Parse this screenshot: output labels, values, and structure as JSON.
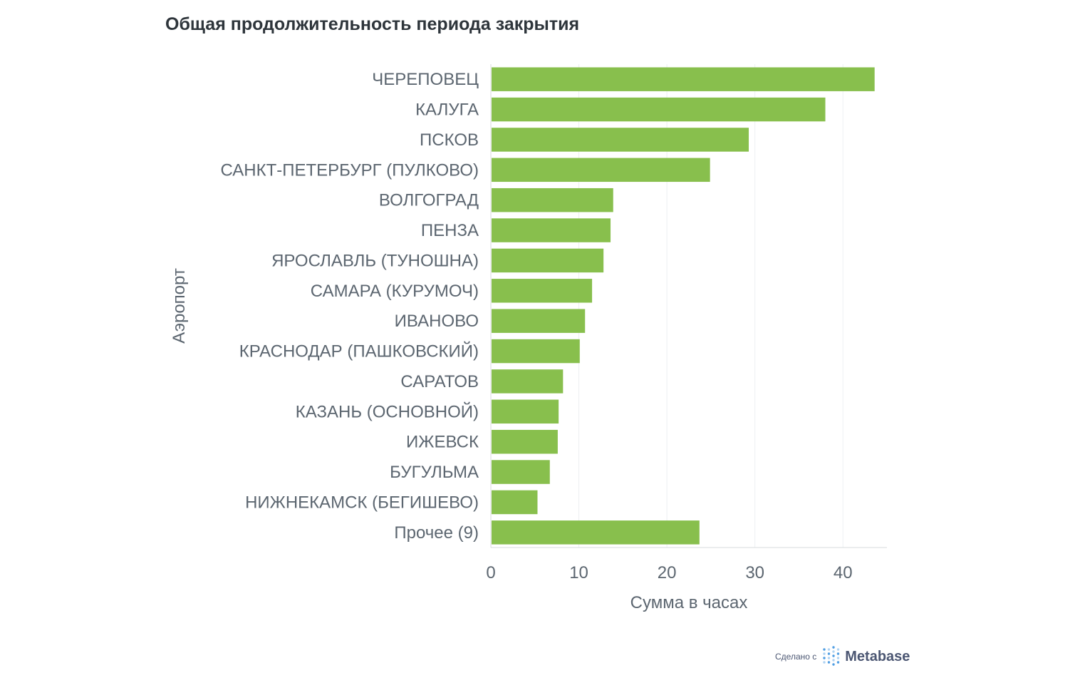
{
  "chart_data": {
    "type": "bar",
    "orientation": "horizontal",
    "title": "Общая продолжительность периода закрытия",
    "xlabel": "Сумма в часах",
    "ylabel": "Аэропорт",
    "categories": [
      "ЧЕРЕПОВЕЦ",
      "КАЛУГА",
      "ПСКОВ",
      "САНКТ-ПЕТЕРБУРГ (ПУЛКОВО)",
      "ВОЛГОГРАД",
      "ПЕНЗА",
      "ЯРОСЛАВЛЬ (ТУНОШНА)",
      "САМАРА (КУРУМОЧ)",
      "ИВАНОВО",
      "КРАСНОДАР (ПАШКОВСКИЙ)",
      "САРАТОВ",
      "КАЗАНЬ (ОСНОВНОЙ)",
      "ИЖЕВСК",
      "БУГУЛЬМА",
      "НИЖНЕКАМСК (БЕГИШЕВО)",
      "Прочее (9)"
    ],
    "values": [
      43.6,
      38.0,
      29.3,
      24.9,
      13.9,
      13.6,
      12.8,
      11.5,
      10.7,
      10.1,
      8.2,
      7.7,
      7.6,
      6.7,
      5.3,
      23.7
    ],
    "xlim": [
      0,
      45
    ],
    "xticks": [
      0,
      10,
      20,
      30,
      40
    ],
    "grid": true,
    "legend": "none",
    "bar_color": "#88bf4d"
  },
  "colors": {
    "bar": "#88bf4d",
    "grid": "#edf0f2",
    "axis_line": "#d7dbde",
    "text": "#5c6670",
    "title": "#2e353b"
  },
  "footer": {
    "made_with": "Сделано с",
    "brand": "Metabase",
    "logo_icon": "metabase-logo-icon"
  }
}
